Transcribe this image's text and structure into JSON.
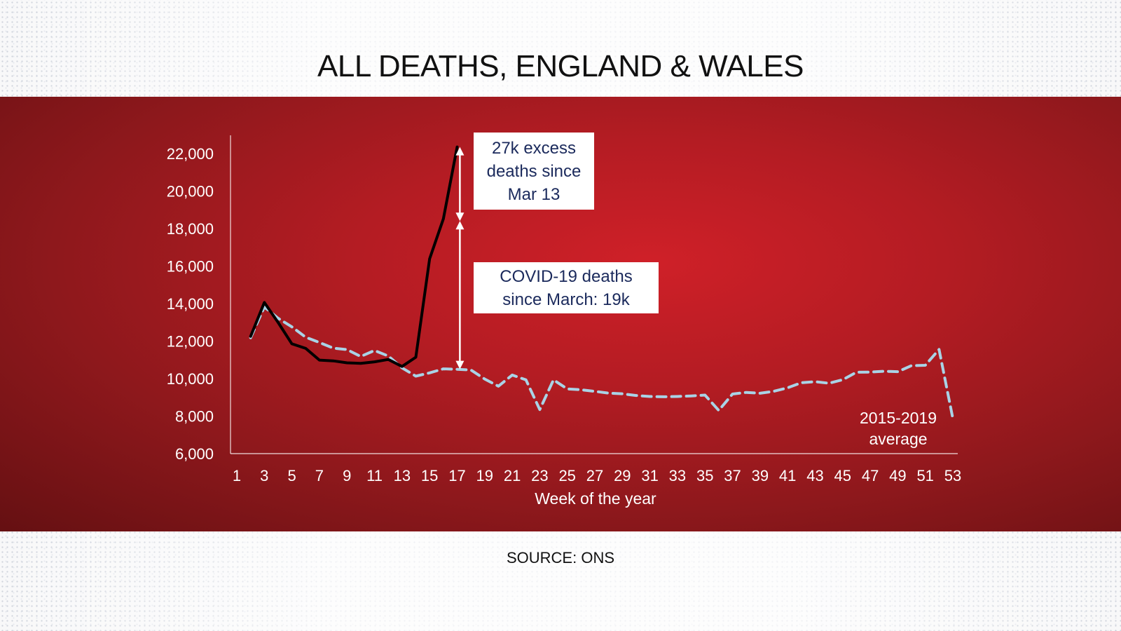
{
  "page": {
    "title": "ALL DEATHS, ENGLAND & WALES",
    "source": "SOURCE: ONS"
  },
  "colors": {
    "panel_red": "#b41c23",
    "series_2020": "#000000",
    "series_average": "#a9d3e6",
    "annotation_text": "#1b2a5c",
    "axis": "#ffffff"
  },
  "chart_data": {
    "type": "line",
    "title": "ALL DEATHS, ENGLAND & WALES",
    "xlabel": "Week of the year",
    "ylabel": "",
    "xlim": [
      1,
      53
    ],
    "ylim": [
      6000,
      22000
    ],
    "x_ticks": [
      1,
      3,
      5,
      7,
      9,
      11,
      13,
      15,
      17,
      19,
      21,
      23,
      25,
      27,
      29,
      31,
      33,
      35,
      37,
      39,
      41,
      43,
      45,
      47,
      49,
      51,
      53
    ],
    "y_ticks": [
      6000,
      8000,
      10000,
      12000,
      14000,
      16000,
      18000,
      20000,
      22000
    ],
    "y_tick_labels": [
      "6,000",
      "8,000",
      "10,000",
      "12,000",
      "14,000",
      "16,000",
      "18,000",
      "20,000",
      "22,000"
    ],
    "grid": false,
    "series": [
      {
        "name": "",
        "style": "solid",
        "x": [
          2,
          3,
          4,
          5,
          6,
          7,
          8,
          9,
          10,
          11,
          12,
          13,
          14,
          15,
          16,
          17
        ],
        "values": [
          12250,
          14058,
          12990,
          11856,
          11612,
          10986,
          10944,
          10841,
          10816,
          10895,
          11019,
          10645,
          11141,
          16387,
          18516,
          22351
        ]
      },
      {
        "name": "2015-2019 average",
        "style": "dashed",
        "x": [
          2,
          3,
          4,
          5,
          6,
          7,
          8,
          9,
          10,
          11,
          12,
          13,
          14,
          15,
          16,
          17,
          18,
          19,
          20,
          21,
          22,
          23,
          24,
          25,
          26,
          27,
          28,
          29,
          30,
          31,
          32,
          33,
          34,
          35,
          36,
          37,
          38,
          39,
          40,
          41,
          42,
          43,
          44,
          45,
          46,
          47,
          48,
          49,
          50,
          51,
          52,
          53
        ],
        "values": [
          12175,
          13822,
          13216,
          12760,
          12206,
          11925,
          11627,
          11548,
          11183,
          11498,
          11205,
          10573,
          10130,
          10305,
          10520,
          10497,
          10458,
          9977,
          9596,
          10190,
          9933,
          8349,
          9933,
          9451,
          9406,
          9318,
          9226,
          9190,
          9100,
          9046,
          9030,
          9046,
          9078,
          9120,
          8302,
          9177,
          9264,
          9220,
          9325,
          9509,
          9779,
          9836,
          9753,
          9942,
          10339,
          10349,
          10393,
          10367,
          10691,
          10712,
          11557,
          7873
        ]
      }
    ],
    "annotations": [
      {
        "text_lines": [
          "27k excess",
          "deaths since",
          "Mar 13"
        ],
        "from": 18400,
        "to": 22351,
        "x": 17.2
      },
      {
        "text_lines": [
          "COVID-19 deaths",
          "since March: 19k"
        ],
        "from": 10500,
        "to": 18400,
        "x": 17.2
      }
    ]
  }
}
